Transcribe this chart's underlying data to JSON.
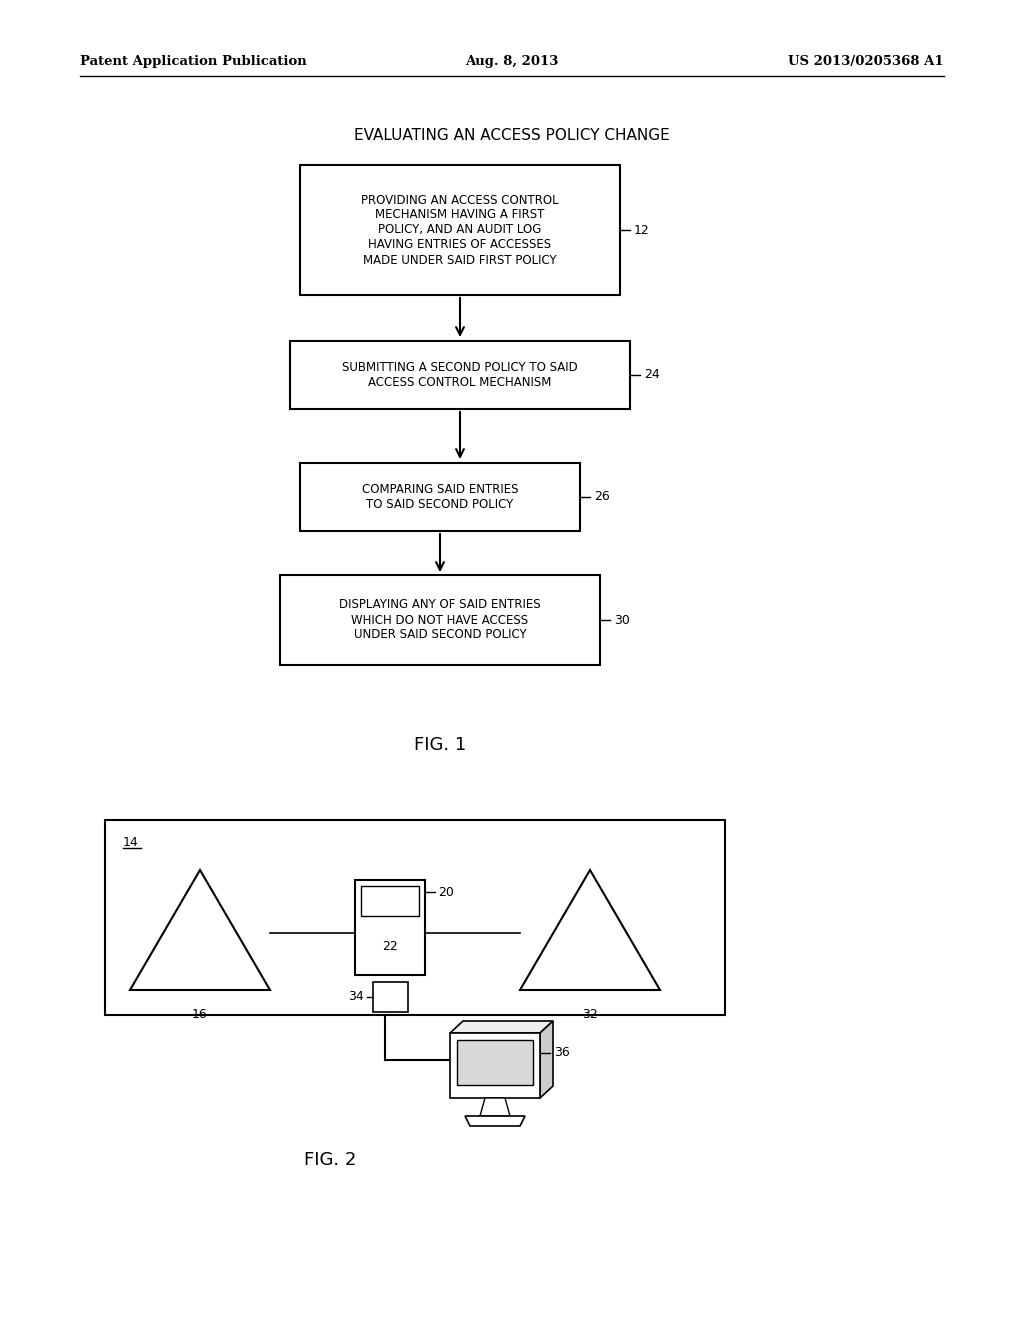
{
  "background_color": "#ffffff",
  "header_left": "Patent Application Publication",
  "header_center": "Aug. 8, 2013",
  "header_right": "US 2013/0205368 A1",
  "fig1_title": "EVALUATING AN ACCESS POLICY CHANGE",
  "fig1_caption": "FIG. 1",
  "fig2_caption": "FIG. 2"
}
